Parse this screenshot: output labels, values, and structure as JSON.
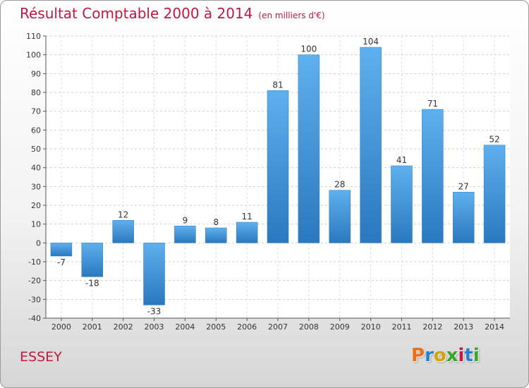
{
  "chart_data": {
    "type": "bar",
    "title": "Résultat Comptable 2000 à 2014",
    "subtitle": "(en milliers d'€)",
    "categories": [
      "2000",
      "2001",
      "2002",
      "2003",
      "2004",
      "2005",
      "2006",
      "2007",
      "2008",
      "2009",
      "2010",
      "2011",
      "2012",
      "2013",
      "2014"
    ],
    "values": [
      -7,
      -18,
      12,
      -33,
      9,
      8,
      11,
      81,
      100,
      28,
      104,
      41,
      71,
      27,
      52
    ],
    "data_labels": [
      "-7",
      "-18",
      "12",
      "-33",
      "9",
      "8",
      "11",
      "81",
      "100",
      "28",
      "104",
      "41",
      "71",
      "27",
      "52"
    ],
    "ylim": [
      -40,
      110
    ],
    "yticks": [
      -40,
      -30,
      -20,
      -10,
      0,
      10,
      20,
      30,
      40,
      50,
      60,
      70,
      80,
      90,
      100,
      110
    ],
    "xlabel": "",
    "ylabel": "",
    "grid": true,
    "bar_color": "#3d8ed9"
  },
  "footer": {
    "commune": "ESSEY",
    "brand": "Proxiti",
    "brand_colors": [
      "#e8701a",
      "#2a7fd0",
      "#d4a20c",
      "#3aa52d",
      "#c0183e",
      "#2a7fd0",
      "#3aa52d"
    ]
  }
}
